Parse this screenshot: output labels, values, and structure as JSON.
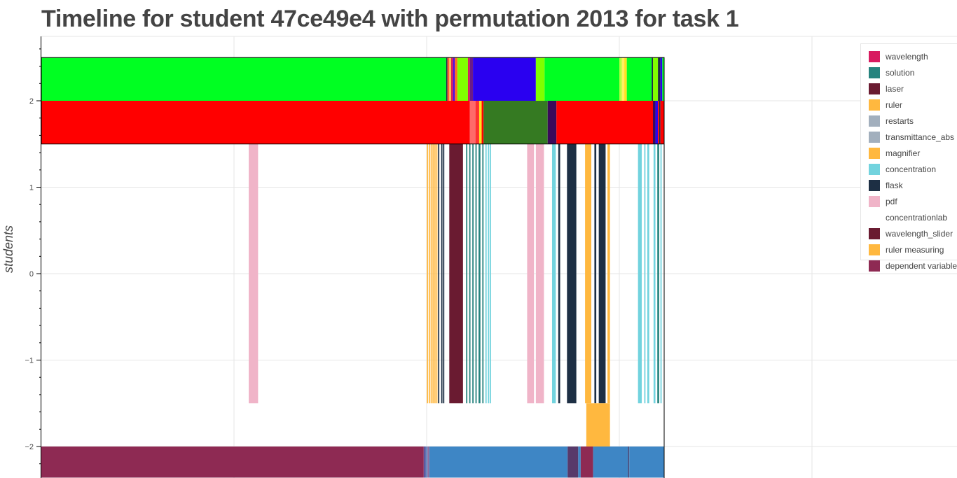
{
  "title": "Timeline for student 47ce49e4 with permutation 2013 for task 1",
  "colors": {
    "green": "#00ff22",
    "red": "#ff0000",
    "wavelength": "#d81b60",
    "solution": "#26837e",
    "laser": "#6a1b31",
    "ruler": "#ffb83f",
    "restarts": "#a2afbd",
    "transmittance_abs": "#a2afbd",
    "magnifier": "#ffb83f",
    "concentration": "#72d3de",
    "flask": "#1d2f44",
    "pdf": "#f0b4c8",
    "concentrationlab": "#ffffff",
    "wavelength_slider": "#6a1b31",
    "ruler_measuring": "#ffb83f",
    "dependent_variable": "#8e2a53",
    "blue": "#3e86c5",
    "dark_green": "#357a22",
    "purple_blue": "#2a00f0"
  },
  "chart_data": {
    "type": "timeline",
    "title": "Timeline for student 47ce49e4 with permutation 2013 for task 1",
    "ylabel": "students",
    "xlabel": "",
    "ylim": [
      -2.36,
      2.78
    ],
    "xlim": [
      0,
      1000
    ],
    "yticks": [
      "2",
      "1",
      "0",
      "−1",
      "−2"
    ],
    "ytick_values": [
      2,
      1,
      0,
      -1,
      -2
    ],
    "grid": true,
    "legend_placement": "right",
    "legend": [
      "wavelength",
      "solution",
      "laser",
      "ruler",
      "restarts",
      "transmittance_abs",
      "magnifier",
      "concentration",
      "flask",
      "pdf",
      "concentrationlab",
      "wavelength_slider",
      "ruler measuring",
      "dependent variable"
    ],
    "rows": [
      {
        "y0": 2,
        "y1": 2.5,
        "segments": [
          {
            "x0": 0,
            "x1": 650,
            "color": "#00ff22"
          },
          {
            "x0": 650,
            "x1": 652,
            "color": "#1d2f44"
          },
          {
            "x0": 652,
            "x1": 655,
            "color": "#ff5a36"
          },
          {
            "x0": 655,
            "x1": 658,
            "color": "#ffc04d"
          },
          {
            "x0": 658,
            "x1": 661,
            "color": "#d81b60"
          },
          {
            "x0": 661,
            "x1": 664,
            "color": "#4a10e0"
          },
          {
            "x0": 664,
            "x1": 668,
            "color": "#ff6a20"
          },
          {
            "x0": 668,
            "x1": 685,
            "color": "#80ff00"
          },
          {
            "x0": 685,
            "x1": 688,
            "color": "#d81b60"
          },
          {
            "x0": 688,
            "x1": 693,
            "color": "#6a1b8a"
          },
          {
            "x0": 693,
            "x1": 794,
            "color": "#2a00f0"
          },
          {
            "x0": 794,
            "x1": 808,
            "color": "#80ff00"
          },
          {
            "x0": 808,
            "x1": 928,
            "color": "#00ff22"
          },
          {
            "x0": 928,
            "x1": 932,
            "color": "#b0ff40"
          },
          {
            "x0": 932,
            "x1": 936,
            "color": "#fff060"
          },
          {
            "x0": 936,
            "x1": 940,
            "color": "#ffe020"
          },
          {
            "x0": 940,
            "x1": 980,
            "color": "#00ff22"
          },
          {
            "x0": 980,
            "x1": 982,
            "color": "#1d2f44"
          },
          {
            "x0": 982,
            "x1": 990,
            "color": "#80ff00"
          },
          {
            "x0": 990,
            "x1": 994,
            "color": "#1d2f44"
          },
          {
            "x0": 994,
            "x1": 997,
            "color": "#2a00f0"
          },
          {
            "x0": 997,
            "x1": 1000,
            "color": "#00ff22"
          }
        ]
      },
      {
        "y0": 1.5,
        "y1": 2,
        "segments": [
          {
            "x0": 0,
            "x1": 688,
            "color": "#ff0000"
          },
          {
            "x0": 688,
            "x1": 697,
            "color": "#ff6a6a"
          },
          {
            "x0": 697,
            "x1": 703,
            "color": "#ff3030"
          },
          {
            "x0": 703,
            "x1": 707,
            "color": "#ffe020"
          },
          {
            "x0": 707,
            "x1": 710,
            "color": "#ff0000"
          },
          {
            "x0": 710,
            "x1": 813,
            "color": "#357a22"
          },
          {
            "x0": 813,
            "x1": 827,
            "color": "#3a0a5a"
          },
          {
            "x0": 827,
            "x1": 982,
            "color": "#ff0000"
          },
          {
            "x0": 982,
            "x1": 986,
            "color": "#3a0a5a"
          },
          {
            "x0": 986,
            "x1": 990,
            "color": "#2a00f0"
          },
          {
            "x0": 990,
            "x1": 992,
            "color": "#ff0000"
          },
          {
            "x0": 992,
            "x1": 994,
            "color": "#1d2f44"
          },
          {
            "x0": 994,
            "x1": 1000,
            "color": "#ff0000"
          }
        ]
      },
      {
        "y0": -1.5,
        "y1": 1.5,
        "segments": [
          {
            "x0": 333,
            "x1": 348,
            "color": "#f0b4c8"
          },
          {
            "x0": 619,
            "x1": 621,
            "color": "#ffb83f"
          },
          {
            "x0": 622,
            "x1": 624,
            "color": "#ffb83f"
          },
          {
            "x0": 625,
            "x1": 627,
            "color": "#ffb83f"
          },
          {
            "x0": 628,
            "x1": 630,
            "color": "#ffb83f"
          },
          {
            "x0": 631,
            "x1": 633,
            "color": "#ffb83f"
          },
          {
            "x0": 634,
            "x1": 636,
            "color": "#ffb83f"
          },
          {
            "x0": 637,
            "x1": 639,
            "color": "#1d2f44"
          },
          {
            "x0": 642,
            "x1": 644,
            "color": "#1d2f44"
          },
          {
            "x0": 645,
            "x1": 647,
            "color": "#1d2f44"
          },
          {
            "x0": 655,
            "x1": 677,
            "color": "#6a1b31"
          },
          {
            "x0": 682,
            "x1": 684,
            "color": "#26837e"
          },
          {
            "x0": 687,
            "x1": 689,
            "color": "#26837e"
          },
          {
            "x0": 692,
            "x1": 694,
            "color": "#26837e"
          },
          {
            "x0": 697,
            "x1": 699,
            "color": "#26837e"
          },
          {
            "x0": 702,
            "x1": 705,
            "color": "#26837e"
          },
          {
            "x0": 708,
            "x1": 710,
            "color": "#26837e"
          },
          {
            "x0": 713,
            "x1": 715,
            "color": "#72d3de"
          },
          {
            "x0": 717,
            "x1": 719,
            "color": "#72d3de"
          },
          {
            "x0": 720,
            "x1": 722,
            "color": "#72d3de"
          },
          {
            "x0": 780,
            "x1": 791,
            "color": "#f0b4c8"
          },
          {
            "x0": 794,
            "x1": 807,
            "color": "#f0b4c8"
          },
          {
            "x0": 820,
            "x1": 826,
            "color": "#72d3de"
          },
          {
            "x0": 830,
            "x1": 833,
            "color": "#1d2f44"
          },
          {
            "x0": 844,
            "x1": 859,
            "color": "#1d2f44"
          },
          {
            "x0": 873,
            "x1": 883,
            "color": "#ffb83f"
          },
          {
            "x0": 888,
            "x1": 891,
            "color": "#1d2f44"
          },
          {
            "x0": 895,
            "x1": 906,
            "color": "#1d2f44"
          },
          {
            "x0": 909,
            "x1": 913,
            "color": "#ffb83f"
          },
          {
            "x0": 958,
            "x1": 964,
            "color": "#72d3de"
          },
          {
            "x0": 968,
            "x1": 970,
            "color": "#72d3de"
          },
          {
            "x0": 973,
            "x1": 976,
            "color": "#72d3de"
          },
          {
            "x0": 983,
            "x1": 986,
            "color": "#72d3de"
          },
          {
            "x0": 989,
            "x1": 992,
            "color": "#26837e"
          },
          {
            "x0": 994,
            "x1": 996,
            "color": "#72d3de"
          }
        ]
      },
      {
        "y0": -2,
        "y1": -1.5,
        "segments": [
          {
            "x0": 875,
            "x1": 913,
            "color": "#ffb83f"
          }
        ]
      },
      {
        "y0": -2.36,
        "y1": -2,
        "segments": [
          {
            "x0": 0,
            "x1": 614,
            "color": "#8e2a53"
          },
          {
            "x0": 614,
            "x1": 617,
            "color": "#5a5aa0"
          },
          {
            "x0": 617,
            "x1": 620,
            "color": "#6a8ac0"
          },
          {
            "x0": 620,
            "x1": 623,
            "color": "#8a70a0"
          },
          {
            "x0": 623,
            "x1": 845,
            "color": "#3e86c5"
          },
          {
            "x0": 845,
            "x1": 862,
            "color": "#583a6a"
          },
          {
            "x0": 862,
            "x1": 866,
            "color": "#3e86c5"
          },
          {
            "x0": 866,
            "x1": 886,
            "color": "#8e2a53"
          },
          {
            "x0": 886,
            "x1": 942,
            "color": "#3e86c5"
          },
          {
            "x0": 942,
            "x1": 944,
            "color": "#4a4a7a"
          },
          {
            "x0": 944,
            "x1": 1000,
            "color": "#3e86c5"
          }
        ]
      }
    ]
  }
}
